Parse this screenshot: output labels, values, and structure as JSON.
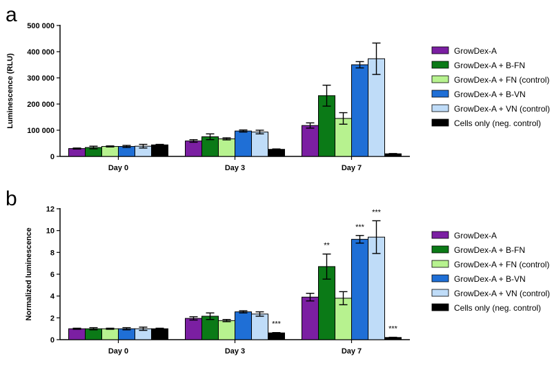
{
  "chart_data": [
    {
      "panel": "a",
      "type": "bar",
      "ylabel": "Luminescence (RLU)",
      "xlabel": "",
      "ylim": [
        0,
        500000
      ],
      "yticks": [
        "0",
        "100 000",
        "200 000",
        "300 000",
        "400 000",
        "500 000"
      ],
      "ytick_values": [
        0,
        100000,
        200000,
        300000,
        400000,
        500000
      ],
      "categories": [
        "Day 0",
        "Day 3",
        "Day 7"
      ],
      "legend_position": "right",
      "series": [
        {
          "name": "GrowDex-A",
          "color": "#7b1fa2",
          "values": [
            30000,
            59000,
            118000
          ],
          "errors": [
            2000,
            5000,
            10000
          ]
        },
        {
          "name": "GrowDex-A + B-FN",
          "color": "#0b7a17",
          "values": [
            34000,
            75000,
            232000
          ],
          "errors": [
            5000,
            11000,
            40000
          ]
        },
        {
          "name": "GrowDex-A + FN (control)",
          "color": "#b7f28f",
          "values": [
            38000,
            67000,
            145000
          ],
          "errors": [
            2000,
            4000,
            22000
          ]
        },
        {
          "name": "GrowDex-A + B-VN",
          "color": "#1f6fd6",
          "values": [
            38000,
            97000,
            350000
          ],
          "errors": [
            4000,
            4000,
            12000
          ]
        },
        {
          "name": "GrowDex-A + VN (control)",
          "color": "#bfdcf8",
          "values": [
            39000,
            93000,
            373000
          ],
          "errors": [
            7000,
            7000,
            60000
          ]
        },
        {
          "name": "Cells only (neg. control)",
          "color": "#000000",
          "values": [
            44000,
            27000,
            10000
          ],
          "errors": [
            2000,
            1500,
            1000
          ]
        }
      ],
      "significance": []
    },
    {
      "panel": "b",
      "type": "bar",
      "ylabel": "Normalized luminescence",
      "xlabel": "",
      "ylim": [
        0,
        12
      ],
      "yticks": [
        "0",
        "2",
        "4",
        "6",
        "8",
        "10",
        "12"
      ],
      "ytick_values": [
        0,
        2,
        4,
        6,
        8,
        10,
        12
      ],
      "categories": [
        "Day 0",
        "Day 3",
        "Day 7"
      ],
      "legend_position": "right",
      "series": [
        {
          "name": "GrowDex-A",
          "color": "#7b1fa2",
          "values": [
            1.0,
            1.95,
            3.9
          ],
          "errors": [
            0.05,
            0.15,
            0.35
          ]
        },
        {
          "name": "GrowDex-A + B-FN",
          "color": "#0b7a17",
          "values": [
            1.0,
            2.15,
            6.7
          ],
          "errors": [
            0.1,
            0.3,
            1.15
          ]
        },
        {
          "name": "GrowDex-A + FN (control)",
          "color": "#b7f28f",
          "values": [
            1.0,
            1.75,
            3.8
          ],
          "errors": [
            0.05,
            0.1,
            0.6
          ]
        },
        {
          "name": "GrowDex-A + B-VN",
          "color": "#1f6fd6",
          "values": [
            1.0,
            2.55,
            9.2
          ],
          "errors": [
            0.1,
            0.1,
            0.35
          ]
        },
        {
          "name": "GrowDex-A + VN (control)",
          "color": "#bfdcf8",
          "values": [
            1.0,
            2.35,
            9.4
          ],
          "errors": [
            0.15,
            0.2,
            1.5
          ]
        },
        {
          "name": "Cells only (neg. control)",
          "color": "#000000",
          "values": [
            1.0,
            0.62,
            0.2
          ],
          "errors": [
            0.05,
            0.03,
            0.02
          ]
        }
      ],
      "significance": [
        {
          "category": 1,
          "series": 5,
          "label": "***"
        },
        {
          "category": 2,
          "series": 1,
          "label": "**"
        },
        {
          "category": 2,
          "series": 3,
          "label": "***"
        },
        {
          "category": 2,
          "series": 4,
          "label": "***"
        },
        {
          "category": 2,
          "series": 5,
          "label": "***"
        }
      ]
    }
  ]
}
